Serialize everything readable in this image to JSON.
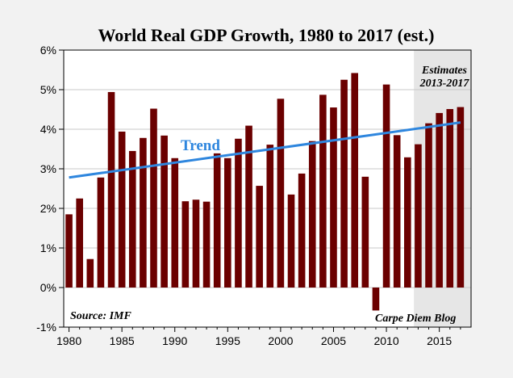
{
  "chart_data": {
    "type": "bar",
    "title": "World Real GDP Growth, 1980 to 2017 (est.)",
    "x": [
      1980,
      1981,
      1982,
      1983,
      1984,
      1985,
      1986,
      1987,
      1988,
      1989,
      1990,
      1991,
      1992,
      1993,
      1994,
      1995,
      1996,
      1997,
      1998,
      1999,
      2000,
      2001,
      2002,
      2003,
      2004,
      2005,
      2006,
      2007,
      2008,
      2009,
      2010,
      2011,
      2012,
      2013,
      2014,
      2015,
      2016,
      2017
    ],
    "values": [
      1.85,
      2.25,
      0.72,
      2.78,
      4.94,
      3.94,
      3.45,
      3.78,
      4.52,
      3.84,
      3.27,
      2.18,
      2.22,
      2.17,
      3.39,
      3.27,
      3.76,
      4.09,
      2.57,
      3.61,
      4.77,
      2.35,
      2.88,
      3.7,
      4.87,
      4.55,
      5.25,
      5.42,
      2.8,
      -0.58,
      5.13,
      3.85,
      3.29,
      3.62,
      4.15,
      4.41,
      4.51,
      4.56
    ],
    "xticks": [
      1980,
      1985,
      1990,
      1995,
      2000,
      2005,
      2010,
      2015
    ],
    "ylim": [
      -1,
      6
    ],
    "yticks": [
      -1,
      0,
      1,
      2,
      3,
      4,
      5,
      6
    ],
    "ytick_format": "%",
    "bar_color": "#6b0000",
    "trend": {
      "label": "Trend",
      "color": "#2e86de",
      "start": [
        1980,
        2.78
      ],
      "end": [
        2017,
        4.17
      ]
    },
    "estimate_region": {
      "from": 2012.6,
      "to": 2018,
      "label_line1": "Estimates",
      "label_line2": "2013-2017",
      "shade_color": "#e6e6e6"
    },
    "grid": true,
    "source": "Source: IMF",
    "credit": "Carpe Diem Blog",
    "plot_bg": "#ffffff",
    "page_bg": "#f2f2f2"
  }
}
